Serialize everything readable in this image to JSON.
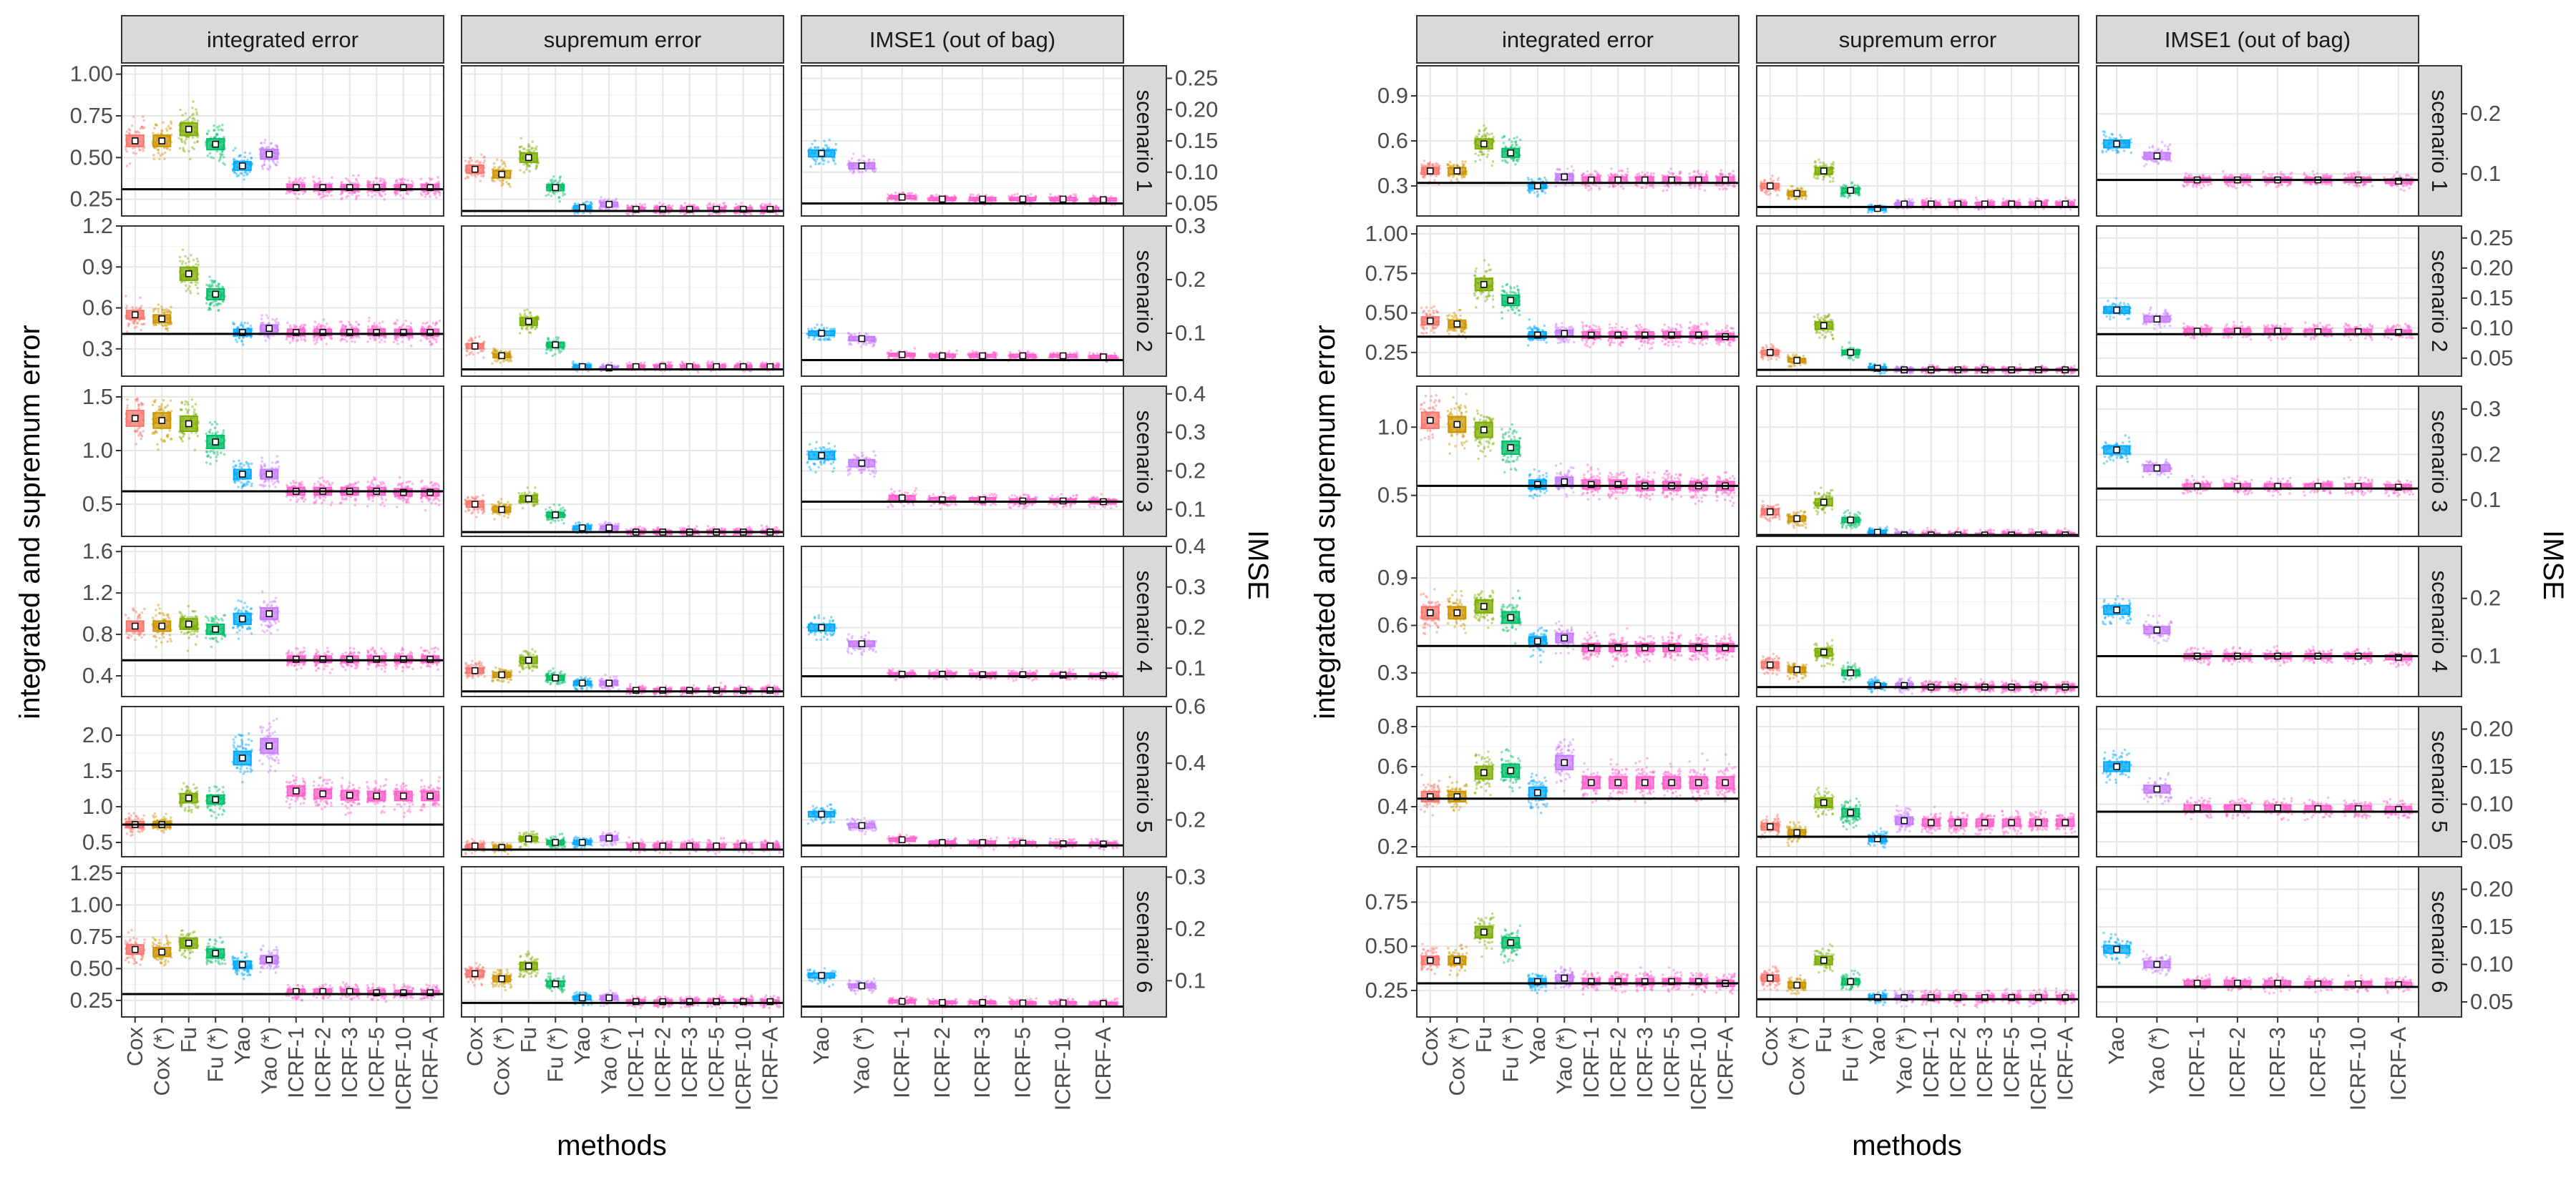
{
  "figure": {
    "x_axis_title": "methods",
    "left_axis_title": "integrated and supremum error",
    "right_axis_title": "IMSE"
  },
  "chart_data": [
    {
      "type": "boxplot-jitter",
      "title": "",
      "xlabel": "methods",
      "ylabel": "integrated and supremum error",
      "y2label": "IMSE",
      "facet_cols": [
        "integrated error",
        "supremum error",
        "IMSE1 (out of bag)"
      ],
      "facet_rows": [
        "scenario 1",
        "scenario 2",
        "scenario 3",
        "scenario 4",
        "scenario 5",
        "scenario 6"
      ],
      "methods_error": [
        "Cox",
        "Cox (*)",
        "Fu",
        "Fu (*)",
        "Yao",
        "Yao (*)",
        "ICRF-1",
        "ICRF-2",
        "ICRF-3",
        "ICRF-5",
        "ICRF-10",
        "ICRF-A"
      ],
      "methods_imse": [
        "Yao",
        "Yao (*)",
        "ICRF-1",
        "ICRF-2",
        "ICRF-3",
        "ICRF-5",
        "ICRF-10",
        "ICRF-A"
      ],
      "rows": [
        {
          "label": "scenario 1",
          "err_ylim": [
            0.15,
            1.05
          ],
          "err_ticks": [
            "1.00",
            "0.75",
            "0.50",
            "0.25"
          ],
          "err_tick_values": [
            1.0,
            0.75,
            0.5,
            0.25
          ],
          "imse_ylim": [
            0.03,
            0.27
          ],
          "imse_ticks": [
            "0.25",
            "0.20",
            "0.15",
            "0.10",
            "0.05"
          ],
          "imse_tick_values": [
            0.25,
            0.2,
            0.15,
            0.1,
            0.05
          ],
          "integrated": [
            0.6,
            0.6,
            0.67,
            0.58,
            0.45,
            0.52,
            0.32,
            0.32,
            0.32,
            0.32,
            0.32,
            0.32
          ],
          "integrated_ref": 0.31,
          "supremum": [
            0.43,
            0.4,
            0.5,
            0.32,
            0.2,
            0.22,
            0.19,
            0.19,
            0.19,
            0.19,
            0.19,
            0.19
          ],
          "supremum_ref": 0.18,
          "imse": [
            0.13,
            0.11,
            0.06,
            0.057,
            0.057,
            0.057,
            0.057,
            0.056
          ],
          "imse_ref": 0.05
        },
        {
          "label": "scenario 2",
          "err_ylim": [
            0.1,
            1.2
          ],
          "err_ticks": [
            "1.2",
            "0.9",
            "0.6",
            "0.3"
          ],
          "err_tick_values": [
            1.2,
            0.9,
            0.6,
            0.3
          ],
          "imse_ylim": [
            0.02,
            0.3
          ],
          "imse_ticks": [
            "0.3",
            "0.2",
            "0.1"
          ],
          "imse_tick_values": [
            0.3,
            0.2,
            0.1
          ],
          "integrated": [
            0.55,
            0.52,
            0.85,
            0.7,
            0.42,
            0.45,
            0.42,
            0.42,
            0.42,
            0.42,
            0.42,
            0.42
          ],
          "integrated_ref": 0.41,
          "supremum": [
            0.32,
            0.25,
            0.5,
            0.33,
            0.17,
            0.16,
            0.17,
            0.17,
            0.17,
            0.17,
            0.17,
            0.17
          ],
          "supremum_ref": 0.15,
          "imse": [
            0.1,
            0.09,
            0.06,
            0.058,
            0.058,
            0.058,
            0.058,
            0.056
          ],
          "imse_ref": 0.05
        },
        {
          "label": "scenario 3",
          "err_ylim": [
            0.2,
            1.6
          ],
          "err_ticks": [
            "1.5",
            "1.0",
            "0.5"
          ],
          "err_tick_values": [
            1.5,
            1.0,
            0.5
          ],
          "imse_ylim": [
            0.03,
            0.42
          ],
          "imse_ticks": [
            "0.4",
            "0.3",
            "0.2",
            "0.1"
          ],
          "imse_tick_values": [
            0.4,
            0.3,
            0.2,
            0.1
          ],
          "integrated": [
            1.3,
            1.28,
            1.25,
            1.08,
            0.78,
            0.78,
            0.62,
            0.62,
            0.62,
            0.62,
            0.61,
            0.61
          ],
          "integrated_ref": 0.62,
          "supremum": [
            0.5,
            0.45,
            0.55,
            0.4,
            0.28,
            0.28,
            0.24,
            0.24,
            0.24,
            0.24,
            0.24,
            0.24
          ],
          "supremum_ref": 0.24,
          "imse": [
            0.24,
            0.22,
            0.13,
            0.125,
            0.125,
            0.122,
            0.122,
            0.12
          ],
          "imse_ref": 0.12
        },
        {
          "label": "scenario 4",
          "err_ylim": [
            0.2,
            1.65
          ],
          "err_ticks": [
            "1.6",
            "1.2",
            "0.8",
            "0.4"
          ],
          "err_tick_values": [
            1.6,
            1.2,
            0.8,
            0.4
          ],
          "imse_ylim": [
            0.03,
            0.4
          ],
          "imse_ticks": [
            "0.4",
            "0.3",
            "0.2",
            "0.1"
          ],
          "imse_tick_values": [
            0.4,
            0.3,
            0.2,
            0.1
          ],
          "integrated": [
            0.88,
            0.88,
            0.9,
            0.85,
            0.95,
            1.0,
            0.56,
            0.56,
            0.56,
            0.56,
            0.56,
            0.56
          ],
          "integrated_ref": 0.55,
          "supremum": [
            0.45,
            0.41,
            0.55,
            0.38,
            0.33,
            0.33,
            0.26,
            0.26,
            0.26,
            0.26,
            0.26,
            0.26
          ],
          "supremum_ref": 0.25,
          "imse": [
            0.2,
            0.16,
            0.085,
            0.085,
            0.084,
            0.084,
            0.083,
            0.082
          ],
          "imse_ref": 0.08
        },
        {
          "label": "scenario 5",
          "err_ylim": [
            0.3,
            2.4
          ],
          "err_ticks": [
            "2.0",
            "1.5",
            "1.0",
            "0.5"
          ],
          "err_tick_values": [
            2.0,
            1.5,
            1.0,
            0.5
          ],
          "imse_ylim": [
            0.07,
            0.6
          ],
          "imse_ticks": [
            "0.6",
            "0.4",
            "0.2"
          ],
          "imse_tick_values": [
            0.6,
            0.4,
            0.2
          ],
          "integrated": [
            0.75,
            0.75,
            1.12,
            1.1,
            1.68,
            1.85,
            1.22,
            1.18,
            1.16,
            1.15,
            1.15,
            1.15
          ],
          "integrated_ref": 0.75,
          "supremum": [
            0.45,
            0.43,
            0.55,
            0.5,
            0.5,
            0.56,
            0.45,
            0.45,
            0.45,
            0.45,
            0.45,
            0.45
          ],
          "supremum_ref": 0.4,
          "imse": [
            0.22,
            0.18,
            0.13,
            0.12,
            0.12,
            0.118,
            0.116,
            0.115
          ],
          "imse_ref": 0.11
        },
        {
          "label": "scenario 6",
          "err_ylim": [
            0.12,
            1.3
          ],
          "err_ticks": [
            "1.25",
            "1.00",
            "0.75",
            "0.50",
            "0.25"
          ],
          "err_tick_values": [
            1.25,
            1.0,
            0.75,
            0.5,
            0.25
          ],
          "imse_ylim": [
            0.03,
            0.32
          ],
          "imse_ticks": [
            "0.3",
            "0.2",
            "0.1"
          ],
          "imse_tick_values": [
            0.3,
            0.2,
            0.1
          ],
          "integrated": [
            0.65,
            0.63,
            0.7,
            0.62,
            0.53,
            0.57,
            0.32,
            0.32,
            0.32,
            0.31,
            0.31,
            0.31
          ],
          "integrated_ref": 0.3,
          "supremum": [
            0.46,
            0.42,
            0.52,
            0.38,
            0.27,
            0.27,
            0.24,
            0.24,
            0.24,
            0.24,
            0.24,
            0.24
          ],
          "supremum_ref": 0.23,
          "imse": [
            0.11,
            0.09,
            0.06,
            0.058,
            0.058,
            0.057,
            0.057,
            0.056
          ],
          "imse_ref": 0.05
        }
      ]
    },
    {
      "type": "boxplot-jitter",
      "title": "",
      "xlabel": "methods",
      "ylabel": "integrated and supremum error",
      "y2label": "IMSE",
      "facet_cols": [
        "integrated error",
        "supremum error",
        "IMSE1 (out of bag)"
      ],
      "facet_rows": [
        "scenario 1",
        "scenario 2",
        "scenario 3",
        "scenario 4",
        "scenario 5",
        "scenario 6"
      ],
      "methods_error": [
        "Cox",
        "Cox (*)",
        "Fu",
        "Fu (*)",
        "Yao",
        "Yao (*)",
        "ICRF-1",
        "ICRF-2",
        "ICRF-3",
        "ICRF-5",
        "ICRF-10",
        "ICRF-A"
      ],
      "methods_imse": [
        "Yao",
        "Yao (*)",
        "ICRF-1",
        "ICRF-2",
        "ICRF-3",
        "ICRF-5",
        "ICRF-10",
        "ICRF-A"
      ],
      "rows": [
        {
          "label": "scenario 1",
          "err_ylim": [
            0.1,
            1.1
          ],
          "err_ticks": [
            "0.9",
            "0.6",
            "0.3"
          ],
          "err_tick_values": [
            0.9,
            0.6,
            0.3
          ],
          "imse_ylim": [
            0.03,
            0.28
          ],
          "imse_ticks": [
            "0.2",
            "0.1"
          ],
          "imse_tick_values": [
            0.2,
            0.1
          ],
          "integrated": [
            0.4,
            0.4,
            0.58,
            0.52,
            0.3,
            0.36,
            0.34,
            0.34,
            0.34,
            0.34,
            0.34,
            0.34
          ],
          "integrated_ref": 0.32,
          "supremum": [
            0.3,
            0.25,
            0.4,
            0.27,
            0.15,
            0.18,
            0.18,
            0.18,
            0.18,
            0.18,
            0.18,
            0.18
          ],
          "supremum_ref": 0.16,
          "imse": [
            0.15,
            0.13,
            0.09,
            0.09,
            0.09,
            0.09,
            0.09,
            0.088
          ],
          "imse_ref": 0.09
        },
        {
          "label": "scenario 2",
          "err_ylim": [
            0.1,
            1.05
          ],
          "err_ticks": [
            "1.00",
            "0.75",
            "0.50",
            "0.25"
          ],
          "err_tick_values": [
            1.0,
            0.75,
            0.5,
            0.25
          ],
          "imse_ylim": [
            0.02,
            0.27
          ],
          "imse_ticks": [
            "0.25",
            "0.20",
            "0.15",
            "0.10",
            "0.05"
          ],
          "imse_tick_values": [
            0.25,
            0.2,
            0.15,
            0.1,
            0.05
          ],
          "integrated": [
            0.45,
            0.43,
            0.68,
            0.58,
            0.36,
            0.37,
            0.36,
            0.36,
            0.36,
            0.36,
            0.36,
            0.35
          ],
          "integrated_ref": 0.35,
          "supremum": [
            0.25,
            0.2,
            0.42,
            0.25,
            0.15,
            0.14,
            0.14,
            0.14,
            0.14,
            0.14,
            0.14,
            0.14
          ],
          "supremum_ref": 0.14,
          "imse": [
            0.13,
            0.115,
            0.095,
            0.095,
            0.095,
            0.094,
            0.094,
            0.093
          ],
          "imse_ref": 0.09
        },
        {
          "label": "scenario 3",
          "err_ylim": [
            0.2,
            1.3
          ],
          "err_ticks": [
            "1.0",
            "0.5"
          ],
          "err_tick_values": [
            1.0,
            0.5
          ],
          "imse_ylim": [
            0.02,
            0.35
          ],
          "imse_ticks": [
            "0.3",
            "0.2",
            "0.1"
          ],
          "imse_tick_values": [
            0.3,
            0.2,
            0.1
          ],
          "integrated": [
            1.05,
            1.02,
            0.98,
            0.85,
            0.58,
            0.6,
            0.58,
            0.58,
            0.57,
            0.57,
            0.57,
            0.57
          ],
          "integrated_ref": 0.57,
          "supremum": [
            0.38,
            0.33,
            0.45,
            0.32,
            0.23,
            0.21,
            0.21,
            0.21,
            0.21,
            0.21,
            0.21,
            0.21
          ],
          "supremum_ref": 0.21,
          "imse": [
            0.21,
            0.17,
            0.13,
            0.13,
            0.13,
            0.13,
            0.13,
            0.128
          ],
          "imse_ref": 0.125
        },
        {
          "label": "scenario 4",
          "err_ylim": [
            0.15,
            1.1
          ],
          "err_ticks": [
            "0.9",
            "0.6",
            "0.3"
          ],
          "err_tick_values": [
            0.9,
            0.6,
            0.3
          ],
          "imse_ylim": [
            0.03,
            0.29
          ],
          "imse_ticks": [
            "0.2",
            "0.1"
          ],
          "imse_tick_values": [
            0.2,
            0.1
          ],
          "integrated": [
            0.68,
            0.68,
            0.72,
            0.65,
            0.5,
            0.52,
            0.46,
            0.46,
            0.46,
            0.46,
            0.46,
            0.46
          ],
          "integrated_ref": 0.47,
          "supremum": [
            0.35,
            0.32,
            0.43,
            0.3,
            0.22,
            0.22,
            0.21,
            0.21,
            0.21,
            0.21,
            0.21,
            0.21
          ],
          "supremum_ref": 0.21,
          "imse": [
            0.18,
            0.145,
            0.1,
            0.1,
            0.1,
            0.1,
            0.1,
            0.098
          ],
          "imse_ref": 0.1
        },
        {
          "label": "scenario 5",
          "err_ylim": [
            0.15,
            0.9
          ],
          "err_ticks": [
            "0.8",
            "0.6",
            "0.4",
            "0.2"
          ],
          "err_tick_values": [
            0.8,
            0.6,
            0.4,
            0.2
          ],
          "imse_ylim": [
            0.03,
            0.23
          ],
          "imse_ticks": [
            "0.20",
            "0.15",
            "0.10",
            "0.05"
          ],
          "imse_tick_values": [
            0.2,
            0.15,
            0.1,
            0.05
          ],
          "integrated": [
            0.45,
            0.45,
            0.57,
            0.58,
            0.47,
            0.62,
            0.52,
            0.52,
            0.52,
            0.52,
            0.52,
            0.52
          ],
          "integrated_ref": 0.44,
          "supremum": [
            0.3,
            0.27,
            0.42,
            0.37,
            0.24,
            0.33,
            0.32,
            0.32,
            0.32,
            0.32,
            0.32,
            0.32
          ],
          "supremum_ref": 0.25,
          "imse": [
            0.15,
            0.12,
            0.095,
            0.095,
            0.095,
            0.094,
            0.094,
            0.093
          ],
          "imse_ref": 0.09
        },
        {
          "label": "scenario 6",
          "err_ylim": [
            0.1,
            0.95
          ],
          "err_ticks": [
            "0.75",
            "0.50",
            "0.25"
          ],
          "err_tick_values": [
            0.75,
            0.5,
            0.25
          ],
          "imse_ylim": [
            0.03,
            0.23
          ],
          "imse_ticks": [
            "0.20",
            "0.15",
            "0.10",
            "0.05"
          ],
          "imse_tick_values": [
            0.2,
            0.15,
            0.1,
            0.05
          ],
          "integrated": [
            0.42,
            0.42,
            0.58,
            0.52,
            0.3,
            0.32,
            0.3,
            0.3,
            0.3,
            0.3,
            0.3,
            0.29
          ],
          "integrated_ref": 0.29,
          "supremum": [
            0.32,
            0.28,
            0.42,
            0.3,
            0.21,
            0.21,
            0.21,
            0.21,
            0.21,
            0.21,
            0.21,
            0.21
          ],
          "supremum_ref": 0.2,
          "imse": [
            0.12,
            0.1,
            0.075,
            0.075,
            0.075,
            0.074,
            0.074,
            0.073
          ],
          "imse_ref": 0.07
        }
      ]
    }
  ],
  "colors": {
    "Cox": "#F8766D",
    "Cox (*)": "#CD9600",
    "Fu": "#7CAE00",
    "Fu (*)": "#00BE67",
    "Yao": "#00A9FF",
    "Yao (*)": "#C77CFF",
    "ICRF": "#FF61CC",
    "panel_grid": "#e6e6e6",
    "strip_fill": "#d9d9d9",
    "ref_line": "#000000"
  }
}
